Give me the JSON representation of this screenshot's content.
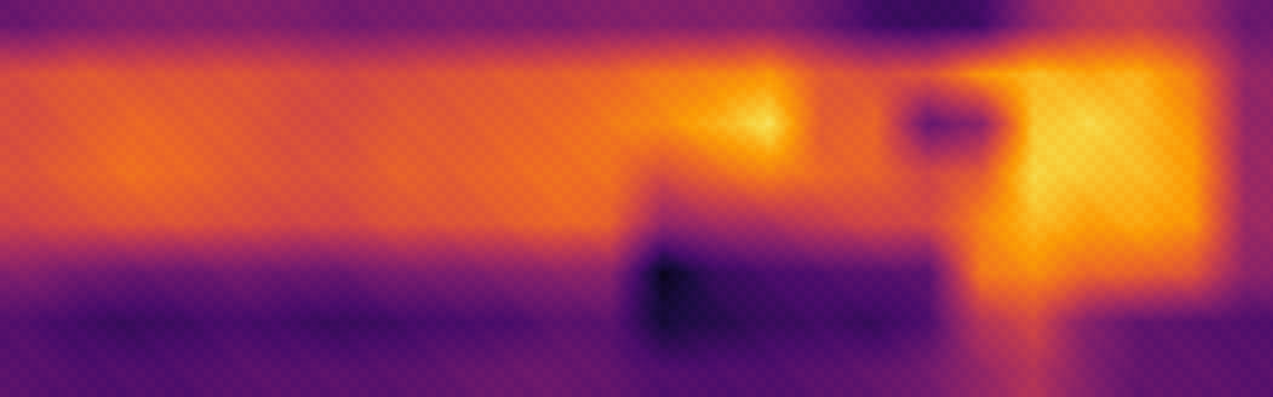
{
  "image": {
    "kind": "depth-map",
    "colormap": "inferno",
    "colormap_stops": [
      "#000004",
      "#1b0c41",
      "#4a0c6b",
      "#781c6d",
      "#a52c60",
      "#cf4446",
      "#ed6925",
      "#fb9b06",
      "#f7d13d",
      "#fcffa4"
    ],
    "grid": {
      "cols": 24,
      "rows": 8
    },
    "values": [
      [
        0.3,
        0.34,
        0.36,
        0.36,
        0.36,
        0.35,
        0.32,
        0.33,
        0.34,
        0.34,
        0.34,
        0.36,
        0.36,
        0.36,
        0.37,
        0.3,
        0.2,
        0.18,
        0.2,
        0.4,
        0.5,
        0.52,
        0.45,
        0.3
      ],
      [
        0.58,
        0.62,
        0.6,
        0.6,
        0.6,
        0.58,
        0.56,
        0.58,
        0.6,
        0.62,
        0.63,
        0.65,
        0.7,
        0.72,
        0.76,
        0.62,
        0.58,
        0.6,
        0.76,
        0.84,
        0.8,
        0.82,
        0.7,
        0.4
      ],
      [
        0.58,
        0.62,
        0.66,
        0.64,
        0.62,
        0.58,
        0.58,
        0.62,
        0.62,
        0.64,
        0.66,
        0.7,
        0.74,
        0.82,
        0.92,
        0.62,
        0.66,
        0.3,
        0.38,
        0.86,
        0.9,
        0.84,
        0.75,
        0.4
      ],
      [
        0.6,
        0.64,
        0.68,
        0.66,
        0.62,
        0.6,
        0.6,
        0.64,
        0.63,
        0.66,
        0.68,
        0.68,
        0.58,
        0.66,
        0.72,
        0.66,
        0.64,
        0.56,
        0.62,
        0.9,
        0.86,
        0.84,
        0.78,
        0.42
      ],
      [
        0.55,
        0.58,
        0.6,
        0.6,
        0.58,
        0.56,
        0.56,
        0.6,
        0.6,
        0.62,
        0.66,
        0.64,
        0.4,
        0.44,
        0.46,
        0.52,
        0.56,
        0.56,
        0.72,
        0.84,
        0.78,
        0.8,
        0.76,
        0.42
      ],
      [
        0.36,
        0.32,
        0.3,
        0.3,
        0.32,
        0.3,
        0.3,
        0.34,
        0.34,
        0.36,
        0.38,
        0.38,
        0.05,
        0.18,
        0.22,
        0.24,
        0.26,
        0.26,
        0.7,
        0.74,
        0.66,
        0.64,
        0.6,
        0.38
      ],
      [
        0.24,
        0.2,
        0.18,
        0.2,
        0.22,
        0.2,
        0.18,
        0.2,
        0.22,
        0.22,
        0.26,
        0.26,
        0.1,
        0.14,
        0.18,
        0.2,
        0.18,
        0.24,
        0.48,
        0.56,
        0.36,
        0.28,
        0.26,
        0.24
      ],
      [
        0.26,
        0.24,
        0.24,
        0.24,
        0.26,
        0.26,
        0.26,
        0.26,
        0.28,
        0.3,
        0.3,
        0.28,
        0.24,
        0.24,
        0.24,
        0.26,
        0.28,
        0.32,
        0.4,
        0.48,
        0.36,
        0.28,
        0.28,
        0.26
      ]
    ]
  }
}
